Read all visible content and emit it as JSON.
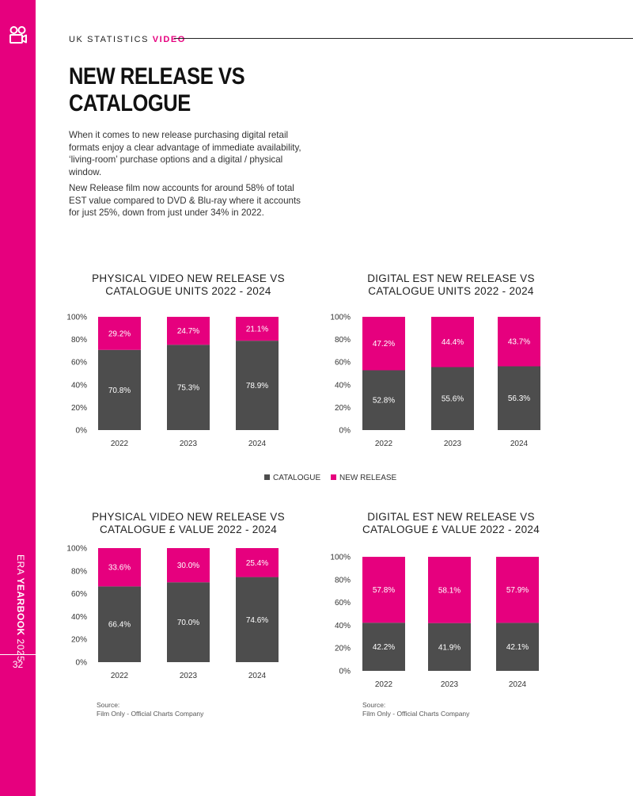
{
  "header": {
    "prefix": "UK STATISTICS",
    "highlight": "VIDEO"
  },
  "title": {
    "line1": "NEW RELEASE VS",
    "line2": "CATALOGUE"
  },
  "paragraphs": [
    "When it comes to new release purchasing digital retail formats enjoy a clear advantage of immediate availability, ‘living-room’ purchase options and a digital / physical window.",
    "New Release film now accounts for around 58% of total EST value compared to DVD & Blu-ray where it accounts for just 25%, down from just under 34% in 2022."
  ],
  "sidebar": {
    "era": "ERA",
    "yearbook": "YEARBOOK",
    "year": "2025",
    "page": "32"
  },
  "legend": {
    "catalogue": "CATALOGUE",
    "new_release": "NEW RELEASE"
  },
  "source": {
    "line1": "Source:",
    "line2": "Film Only - Official Charts Company"
  },
  "colors": {
    "catalogue": "#4d4d4d",
    "new_release": "#e6007e",
    "accent": "#e6007e"
  },
  "chart_data": [
    {
      "type": "bar",
      "stacked": true,
      "title_line1": "PHYSICAL VIDEO NEW RELEASE VS",
      "title_line2": "CATALOGUE UNITS 2022 - 2024",
      "categories": [
        "2022",
        "2023",
        "2024"
      ],
      "y_ticks": [
        "0%",
        "20%",
        "40%",
        "60%",
        "80%",
        "100%"
      ],
      "ylim": [
        0,
        100
      ],
      "series": [
        {
          "name": "CATALOGUE",
          "values": [
            70.8,
            75.3,
            78.9
          ],
          "labels": [
            "70.8%",
            "75.3%",
            "78.9%"
          ]
        },
        {
          "name": "NEW RELEASE",
          "values": [
            29.2,
            24.7,
            21.1
          ],
          "labels": [
            "29.2%",
            "24.7%",
            "21.1%"
          ]
        }
      ]
    },
    {
      "type": "bar",
      "stacked": true,
      "title_line1": "DIGITAL EST NEW RELEASE VS",
      "title_line2": "CATALOGUE UNITS 2022 - 2024",
      "categories": [
        "2022",
        "2023",
        "2024"
      ],
      "y_ticks": [
        "0%",
        "20%",
        "40%",
        "60%",
        "80%",
        "100%"
      ],
      "ylim": [
        0,
        100
      ],
      "series": [
        {
          "name": "CATALOGUE",
          "values": [
            52.8,
            55.6,
            56.3
          ],
          "labels": [
            "52.8%",
            "55.6%",
            "56.3%"
          ]
        },
        {
          "name": "NEW RELEASE",
          "values": [
            47.2,
            44.4,
            43.7
          ],
          "labels": [
            "47.2%",
            "44.4%",
            "43.7%"
          ]
        }
      ]
    },
    {
      "type": "bar",
      "stacked": true,
      "title_line1": "PHYSICAL VIDEO NEW RELEASE VS",
      "title_line2": "CATALOGUE £ VALUE 2022 - 2024",
      "categories": [
        "2022",
        "2023",
        "2024"
      ],
      "y_ticks": [
        "0%",
        "20%",
        "40%",
        "60%",
        "80%",
        "100%"
      ],
      "ylim": [
        0,
        100
      ],
      "series": [
        {
          "name": "CATALOGUE",
          "values": [
            66.4,
            70.0,
            74.6
          ],
          "labels": [
            "66.4%",
            "70.0%",
            "74.6%"
          ]
        },
        {
          "name": "NEW RELEASE",
          "values": [
            33.6,
            30.0,
            25.4
          ],
          "labels": [
            "33.6%",
            "30.0%",
            "25.4%"
          ]
        }
      ]
    },
    {
      "type": "bar",
      "stacked": true,
      "title_line1": "DIGITAL EST NEW RELEASE VS",
      "title_line2": "CATALOGUE £ VALUE 2022 - 2024",
      "categories": [
        "2022",
        "2023",
        "2024"
      ],
      "y_ticks": [
        "0%",
        "20%",
        "40%",
        "60%",
        "80%",
        "100%"
      ],
      "ylim": [
        0,
        100
      ],
      "series": [
        {
          "name": "CATALOGUE",
          "values": [
            42.2,
            41.9,
            42.1
          ],
          "labels": [
            "42.2%",
            "41.9%",
            "42.1%"
          ]
        },
        {
          "name": "NEW RELEASE",
          "values": [
            57.8,
            58.1,
            57.9
          ],
          "labels": [
            "57.8%",
            "58.1%",
            "57.9%"
          ]
        }
      ]
    }
  ]
}
